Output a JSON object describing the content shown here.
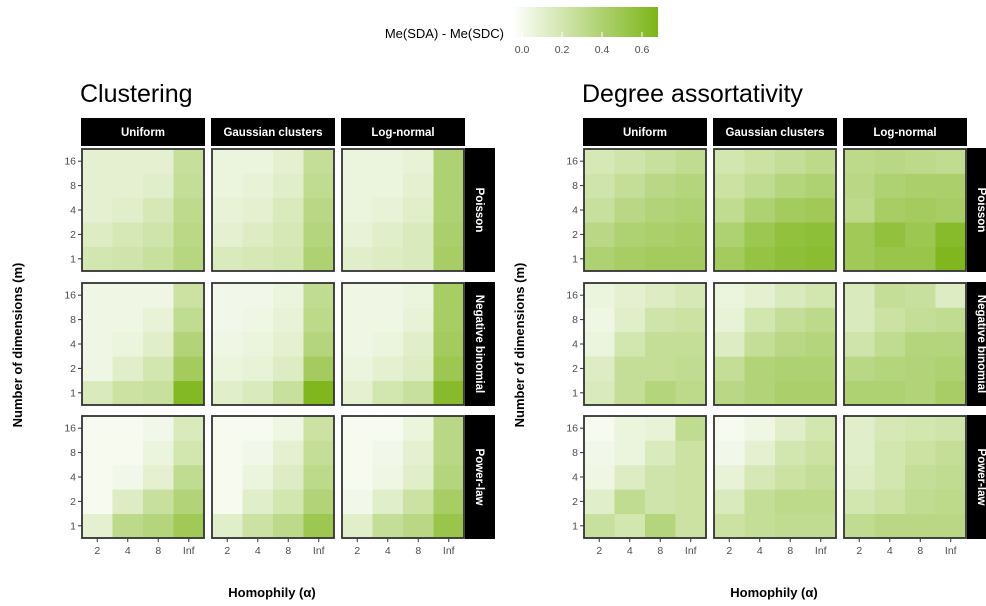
{
  "legend": {
    "title": "Me(SDA) - Me(SDC)",
    "ticks": [
      0.0,
      0.2,
      0.4,
      0.6
    ],
    "tick_labels": [
      "0.0",
      "0.2",
      "0.4",
      "0.6"
    ],
    "range": [
      -0.05,
      0.68
    ],
    "color_low": "#ffffff",
    "color_high": "#7cb518"
  },
  "chart_data": [
    {
      "type": "heatmap",
      "title": "Clustering",
      "xlabel": "Homophily (α)",
      "ylabel": "Number of dimensions (m)",
      "x_categories": [
        "2",
        "4",
        "8",
        "Inf"
      ],
      "y_categories": [
        "1",
        "2",
        "4",
        "8",
        "16"
      ],
      "column_facets": [
        "Uniform",
        "Gaussian clusters",
        "Log-normal"
      ],
      "row_facets": [
        "Poisson",
        "Negative binomial",
        "Power-law"
      ],
      "cells": [
        [
          [
            [
              0.2,
              0.22,
              0.26,
              0.35
            ],
            [
              0.14,
              0.18,
              0.22,
              0.33
            ],
            [
              0.1,
              0.12,
              0.18,
              0.31
            ],
            [
              0.1,
              0.1,
              0.12,
              0.28
            ],
            [
              0.1,
              0.1,
              0.1,
              0.27
            ]
          ],
          [
            [
              0.16,
              0.18,
              0.2,
              0.4
            ],
            [
              0.1,
              0.14,
              0.18,
              0.36
            ],
            [
              0.08,
              0.1,
              0.16,
              0.34
            ],
            [
              0.06,
              0.08,
              0.12,
              0.3
            ],
            [
              0.06,
              0.06,
              0.1,
              0.28
            ]
          ],
          [
            [
              0.12,
              0.14,
              0.16,
              0.44
            ],
            [
              0.08,
              0.12,
              0.16,
              0.42
            ],
            [
              0.06,
              0.08,
              0.12,
              0.4
            ],
            [
              0.06,
              0.06,
              0.1,
              0.4
            ],
            [
              0.06,
              0.06,
              0.08,
              0.4
            ]
          ]
        ],
        [
          [
            [
              0.16,
              0.24,
              0.26,
              0.64
            ],
            [
              0.04,
              0.12,
              0.2,
              0.46
            ],
            [
              0.04,
              0.06,
              0.12,
              0.38
            ],
            [
              0.04,
              0.04,
              0.08,
              0.3
            ],
            [
              0.04,
              0.04,
              0.04,
              0.24
            ]
          ],
          [
            [
              0.12,
              0.16,
              0.26,
              0.66
            ],
            [
              0.06,
              0.08,
              0.14,
              0.46
            ],
            [
              0.04,
              0.06,
              0.1,
              0.36
            ],
            [
              0.02,
              0.04,
              0.08,
              0.32
            ],
            [
              0.02,
              0.02,
              0.06,
              0.3
            ]
          ],
          [
            [
              0.1,
              0.2,
              0.26,
              0.62
            ],
            [
              0.06,
              0.1,
              0.14,
              0.5
            ],
            [
              0.04,
              0.06,
              0.12,
              0.46
            ],
            [
              0.04,
              0.04,
              0.08,
              0.44
            ],
            [
              0.04,
              0.04,
              0.06,
              0.44
            ]
          ]
        ],
        [
          [
            [
              0.1,
              0.32,
              0.36,
              0.48
            ],
            [
              0.0,
              0.14,
              0.26,
              0.38
            ],
            [
              0.0,
              0.02,
              0.1,
              0.3
            ],
            [
              0.0,
              0.0,
              0.06,
              0.2
            ],
            [
              0.0,
              0.0,
              0.02,
              0.16
            ]
          ],
          [
            [
              0.12,
              0.24,
              0.32,
              0.5
            ],
            [
              0.0,
              0.12,
              0.2,
              0.38
            ],
            [
              0.0,
              0.06,
              0.14,
              0.32
            ],
            [
              0.0,
              0.02,
              0.1,
              0.28
            ],
            [
              0.0,
              0.0,
              0.04,
              0.24
            ]
          ],
          [
            [
              0.12,
              0.28,
              0.34,
              0.52
            ],
            [
              0.02,
              0.12,
              0.24,
              0.44
            ],
            [
              0.0,
              0.04,
              0.12,
              0.36
            ],
            [
              0.0,
              0.02,
              0.1,
              0.34
            ],
            [
              0.0,
              0.0,
              0.06,
              0.34
            ]
          ]
        ]
      ]
    },
    {
      "type": "heatmap",
      "title": "Degree assortativity",
      "xlabel": "Homophily (α)",
      "ylabel": "Number of dimensions (m)",
      "x_categories": [
        "2",
        "4",
        "8",
        "Inf"
      ],
      "y_categories": [
        "1",
        "2",
        "4",
        "8",
        "16"
      ],
      "column_facets": [
        "Uniform",
        "Gaussian clusters",
        "Log-normal"
      ],
      "row_facets": [
        "Poisson",
        "Negative binomial",
        "Power-law"
      ],
      "cells": [
        [
          [
            [
              0.4,
              0.44,
              0.46,
              0.46
            ],
            [
              0.34,
              0.4,
              0.42,
              0.44
            ],
            [
              0.26,
              0.34,
              0.38,
              0.4
            ],
            [
              0.22,
              0.28,
              0.34,
              0.36
            ],
            [
              0.18,
              0.22,
              0.26,
              0.3
            ]
          ],
          [
            [
              0.46,
              0.54,
              0.58,
              0.6
            ],
            [
              0.4,
              0.5,
              0.56,
              0.58
            ],
            [
              0.3,
              0.4,
              0.46,
              0.48
            ],
            [
              0.24,
              0.3,
              0.36,
              0.4
            ],
            [
              0.2,
              0.24,
              0.28,
              0.32
            ]
          ],
          [
            [
              0.48,
              0.52,
              0.52,
              0.66
            ],
            [
              0.48,
              0.56,
              0.5,
              0.62
            ],
            [
              0.32,
              0.44,
              0.46,
              0.44
            ],
            [
              0.34,
              0.4,
              0.42,
              0.42
            ],
            [
              0.32,
              0.34,
              0.32,
              0.3
            ]
          ]
        ],
        [
          [
            [
              0.16,
              0.28,
              0.36,
              0.32
            ],
            [
              0.14,
              0.28,
              0.28,
              0.3
            ],
            [
              0.06,
              0.2,
              0.28,
              0.28
            ],
            [
              0.04,
              0.12,
              0.22,
              0.24
            ],
            [
              0.06,
              0.1,
              0.14,
              0.18
            ]
          ],
          [
            [
              0.34,
              0.38,
              0.42,
              0.42
            ],
            [
              0.28,
              0.38,
              0.4,
              0.4
            ],
            [
              0.14,
              0.28,
              0.34,
              0.36
            ],
            [
              0.08,
              0.2,
              0.28,
              0.32
            ],
            [
              0.06,
              0.1,
              0.16,
              0.2
            ]
          ],
          [
            [
              0.4,
              0.4,
              0.38,
              0.44
            ],
            [
              0.34,
              0.36,
              0.38,
              0.4
            ],
            [
              0.22,
              0.3,
              0.36,
              0.36
            ],
            [
              0.16,
              0.24,
              0.28,
              0.3
            ],
            [
              0.16,
              0.28,
              0.26,
              0.14
            ]
          ]
        ],
        [
          [
            [
              0.26,
              0.2,
              0.36,
              0.24
            ],
            [
              0.12,
              0.3,
              0.22,
              0.24
            ],
            [
              0.04,
              0.14,
              0.22,
              0.24
            ],
            [
              0.02,
              0.06,
              0.16,
              0.24
            ],
            [
              0.0,
              0.06,
              0.08,
              0.3
            ]
          ],
          [
            [
              0.24,
              0.28,
              0.3,
              0.3
            ],
            [
              0.16,
              0.28,
              0.32,
              0.32
            ],
            [
              0.08,
              0.18,
              0.24,
              0.28
            ],
            [
              0.02,
              0.1,
              0.2,
              0.24
            ],
            [
              0.0,
              0.04,
              0.12,
              0.2
            ]
          ],
          [
            [
              0.3,
              0.34,
              0.34,
              0.34
            ],
            [
              0.2,
              0.24,
              0.3,
              0.32
            ],
            [
              0.14,
              0.2,
              0.28,
              0.3
            ],
            [
              0.12,
              0.2,
              0.24,
              0.28
            ],
            [
              0.12,
              0.18,
              0.2,
              0.22
            ]
          ]
        ]
      ]
    }
  ]
}
